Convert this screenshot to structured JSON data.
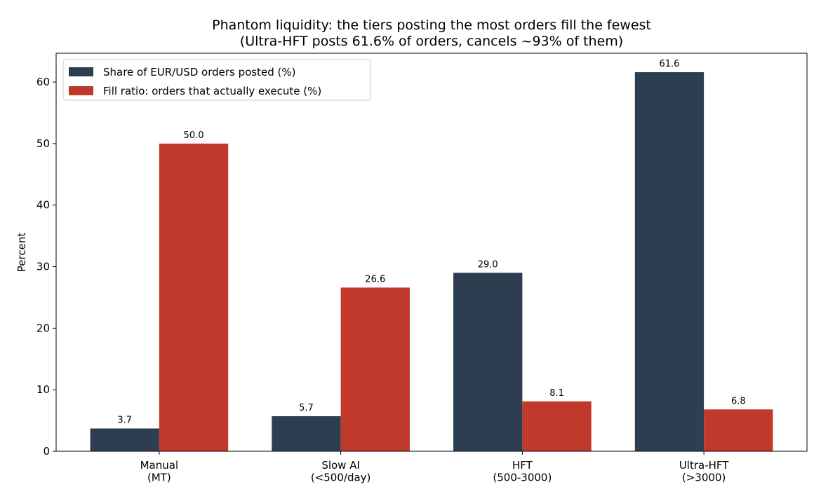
{
  "chart_data": {
    "type": "bar",
    "title": "Phantom liquidity: the tiers posting the most orders fill the fewest",
    "subtitle": "(Ultra-HFT posts 61.6% of orders, cancels ~93% of them)",
    "y_label": "Percent",
    "categories": [
      "Manual\n(MT)",
      "Slow AI\n(<500/day)",
      "HFT\n(500-3000)",
      "Ultra-HFT\n(>3000)"
    ],
    "series": [
      {
        "name": "Share of EUR/USD orders posted (%)",
        "color": "#2c3e50",
        "values": [
          3.7,
          5.7,
          29.0,
          61.6
        ],
        "value_labels": [
          "3.7",
          "5.7",
          "29.0",
          "61.6"
        ]
      },
      {
        "name": "Fill ratio: orders that actually execute (%)",
        "color": "#c0392b",
        "values": [
          50.0,
          26.6,
          8.1,
          6.8
        ],
        "value_labels": [
          "50.0",
          "26.6",
          "8.1",
          "6.8"
        ]
      }
    ],
    "ylim": [
      0,
      64.68
    ],
    "yticks": [
      0,
      10,
      20,
      30,
      40,
      50,
      60
    ],
    "legend": "upper left",
    "grid": false
  }
}
